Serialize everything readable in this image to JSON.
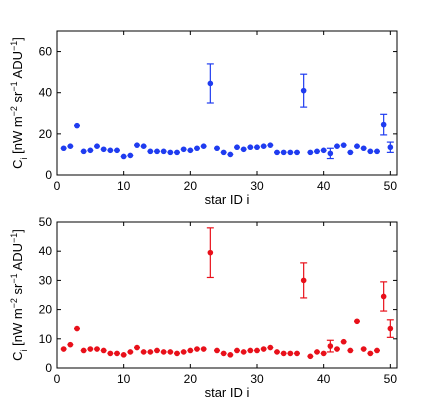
{
  "chart_data": [
    {
      "type": "scatter",
      "xlabel": "star ID i",
      "ylabel": "C_i [nW m^-2 sr^-1 ADU^-1]",
      "xlim": [
        0,
        51
      ],
      "ylim": [
        0,
        70
      ],
      "xticks": [
        0,
        10,
        20,
        30,
        40,
        50
      ],
      "yticks": [
        0,
        20,
        40,
        60
      ],
      "grid": false,
      "color": "#1f3cf0",
      "x": [
        1,
        2,
        3,
        4,
        5,
        6,
        7,
        8,
        9,
        10,
        11,
        12,
        13,
        14,
        15,
        16,
        17,
        18,
        19,
        20,
        21,
        22,
        23,
        24,
        25,
        26,
        27,
        28,
        29,
        30,
        31,
        32,
        33,
        34,
        35,
        36,
        37,
        38,
        39,
        40,
        41,
        42,
        43,
        44,
        45,
        46,
        47,
        48,
        49,
        50
      ],
      "y": [
        13,
        14,
        24,
        11.5,
        12,
        14,
        12.5,
        12,
        12,
        9,
        9.5,
        14.5,
        14,
        11.5,
        11.5,
        11.5,
        11,
        11,
        12.5,
        12,
        13,
        14,
        44.5,
        13,
        11,
        10,
        13.5,
        12.5,
        13.5,
        13.5,
        14,
        14.5,
        11,
        11,
        11,
        11,
        41,
        11,
        11.5,
        12,
        10.5,
        14,
        14.5,
        11,
        14,
        13,
        11.5,
        11.5,
        24.5,
        13.5
      ],
      "error": [
        0.6,
        0.6,
        1,
        0.6,
        0.6,
        0.6,
        0.6,
        0.6,
        0.6,
        0.6,
        0.6,
        0.6,
        0.6,
        0.6,
        0.6,
        0.6,
        0.6,
        0.6,
        0.6,
        0.6,
        0.6,
        0.6,
        9.5,
        0.6,
        0.6,
        0.6,
        0.6,
        0.6,
        0.6,
        0.6,
        0.6,
        0.6,
        0.6,
        0.6,
        0.6,
        0.6,
        8,
        0.6,
        0.6,
        0.6,
        2.5,
        0.6,
        0.6,
        0.6,
        0.6,
        0.6,
        0.6,
        0.6,
        5,
        2.5
      ]
    },
    {
      "type": "scatter",
      "xlabel": "star ID i",
      "ylabel": "C_i [nW m^-2 sr^-1 ADU^-1]",
      "xlim": [
        0,
        51
      ],
      "ylim": [
        0,
        50
      ],
      "xticks": [
        0,
        10,
        20,
        30,
        40,
        50
      ],
      "yticks": [
        0,
        10,
        20,
        30,
        40,
        50
      ],
      "grid": false,
      "color": "#e8101a",
      "x": [
        1,
        2,
        3,
        4,
        5,
        6,
        7,
        8,
        9,
        10,
        11,
        12,
        13,
        14,
        15,
        16,
        17,
        18,
        19,
        20,
        21,
        22,
        23,
        24,
        25,
        26,
        27,
        28,
        29,
        30,
        31,
        32,
        33,
        34,
        35,
        36,
        37,
        38,
        39,
        40,
        41,
        42,
        43,
        44,
        45,
        46,
        47,
        48,
        49,
        50
      ],
      "y": [
        6.5,
        8,
        13.5,
        6,
        6.5,
        6.5,
        6,
        5,
        5,
        4.5,
        5.5,
        7,
        5.5,
        5.5,
        6,
        5.5,
        5.5,
        5,
        5.5,
        6,
        6.5,
        6.5,
        39.5,
        6,
        5,
        4.5,
        6,
        5.5,
        6,
        6,
        6.5,
        7,
        5.5,
        5,
        5,
        5,
        30,
        4,
        5.5,
        5,
        7.5,
        6.5,
        9,
        6,
        16,
        6.5,
        5,
        6,
        24.5,
        13.5
      ],
      "error": [
        0.5,
        0.5,
        0.7,
        0.5,
        0.5,
        0.5,
        0.5,
        0.5,
        0.5,
        0.5,
        0.5,
        0.5,
        0.5,
        0.5,
        0.5,
        0.5,
        0.5,
        0.5,
        0.5,
        0.5,
        0.5,
        0.5,
        8.5,
        0.5,
        0.5,
        0.5,
        0.5,
        0.5,
        0.5,
        0.5,
        0.5,
        0.5,
        0.5,
        0.5,
        0.5,
        0.5,
        6,
        0.5,
        0.5,
        0.5,
        2,
        0.5,
        0.5,
        0.5,
        0.6,
        0.5,
        0.5,
        0.5,
        5,
        3
      ]
    }
  ]
}
